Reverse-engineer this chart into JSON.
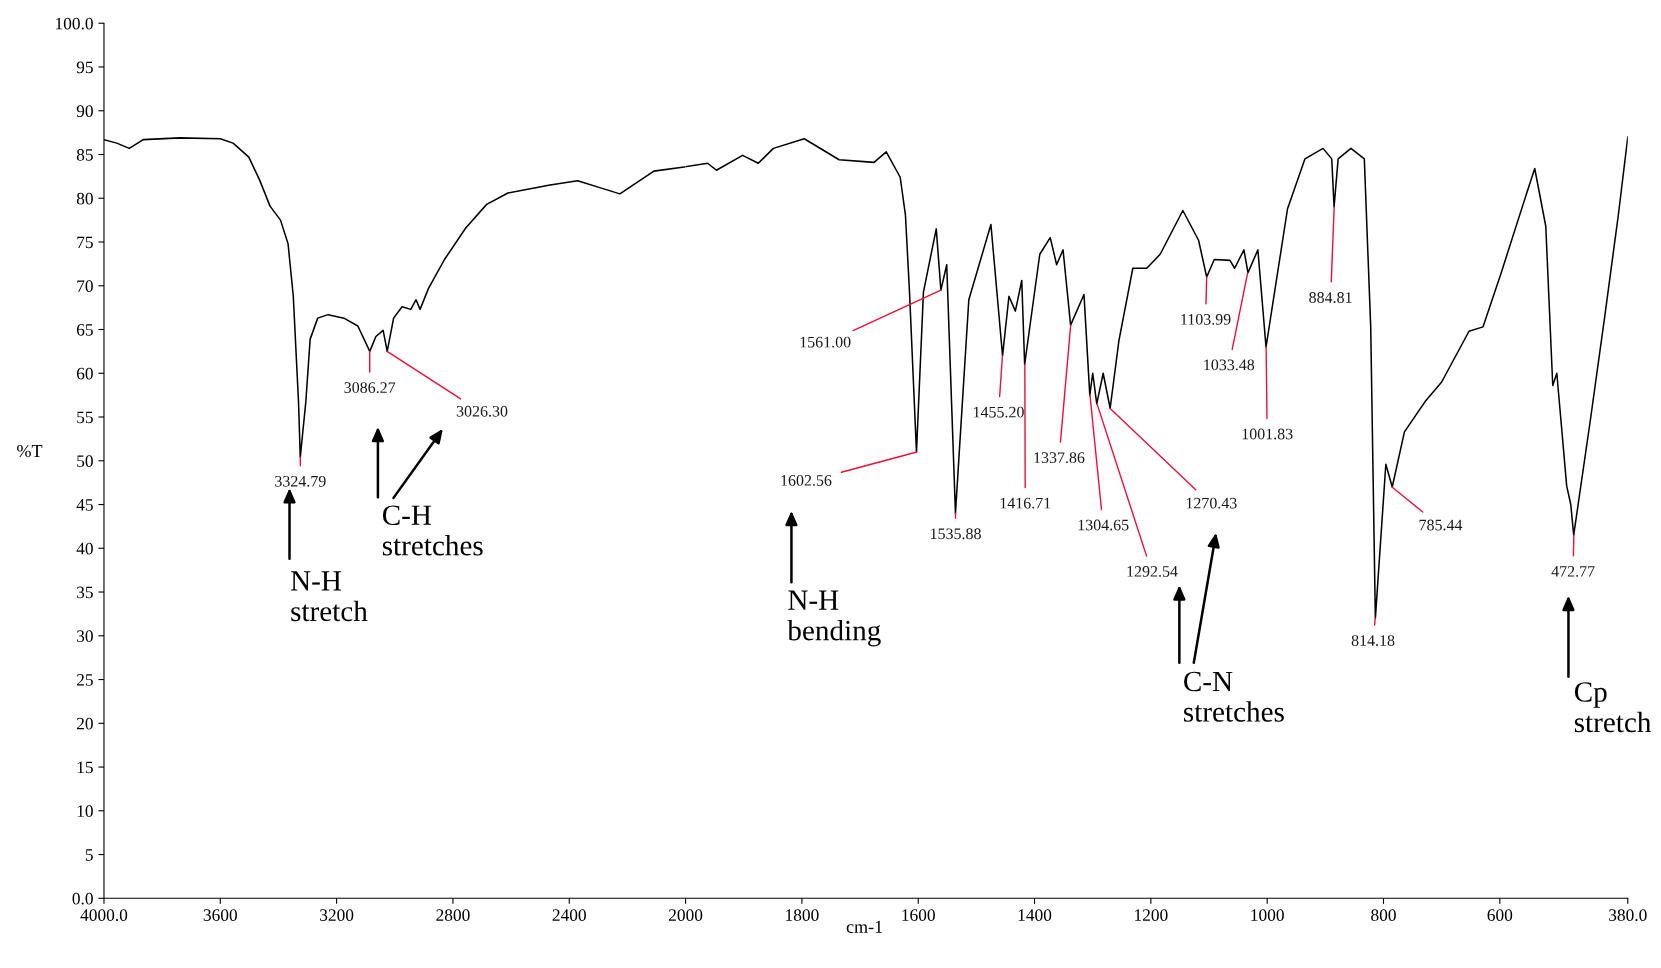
{
  "chart_data": [
    {
      "type": "line",
      "ylabel": "%T",
      "xlim": [
        4000,
        2000
      ],
      "ylim": [
        0,
        100
      ],
      "xticks": [
        {
          "value": 4000,
          "label": "4000.0"
        },
        3600,
        3200,
        2800,
        2400,
        2000
      ],
      "yticks": [
        {
          "value": 0,
          "label": "0.0"
        },
        5,
        10,
        15,
        20,
        25,
        30,
        35,
        40,
        45,
        50,
        55,
        60,
        65,
        70,
        75,
        80,
        85,
        90,
        95,
        {
          "value": 100,
          "label": "100.0"
        }
      ],
      "series": [
        {
          "color": "#000000",
          "x": [
            4000,
            3956,
            3913,
            3865,
            3738,
            3600,
            3556,
            3502,
            3465,
            3429,
            3393,
            3367,
            3349,
            3331,
            3325,
            3306,
            3291,
            3265,
            3229,
            3175,
            3127,
            3086,
            3065,
            3040,
            3026,
            3004,
            2975,
            2945,
            2927,
            2913,
            2884,
            2829,
            2756,
            2684,
            2611,
            2466,
            2371,
            2284,
            2226,
            2109,
            2000
          ],
          "values": [
            86.7,
            86.3,
            85.7,
            86.7,
            86.9,
            86.8,
            86.3,
            84.7,
            82.1,
            79.1,
            77.5,
            74.8,
            68.8,
            56.7,
            50.4,
            56.7,
            63.9,
            66.3,
            66.7,
            66.3,
            65.4,
            62.5,
            64.2,
            64.9,
            62.5,
            66.3,
            67.6,
            67.3,
            68.4,
            67.3,
            69.7,
            73.0,
            76.6,
            79.3,
            80.6,
            81.5,
            82.0,
            81.1,
            80.5,
            83.1,
            83.6
          ]
        }
      ],
      "annotations": [
        {
          "text": "3324.79",
          "x": 3324.79,
          "y": 50.4
        },
        {
          "text": "3086.27",
          "x": 3086.27,
          "y": 62.5
        },
        {
          "text": "3026.30",
          "x": 3026.3,
          "y": 62.5
        },
        "N-H\nstretch",
        "C-H\nstretches"
      ]
    },
    {
      "type": "line",
      "xlabel": "cm-1",
      "xlim": [
        2000,
        380
      ],
      "ylim": [
        0,
        100
      ],
      "xticks": [
        1800,
        1600,
        1400,
        1200,
        1000,
        800,
        600,
        {
          "value": 380,
          "label": "380.0"
        }
      ],
      "tick_labels": "x",
      "series": [
        {
          "color": "#000000",
          "x": [
            2000,
            1962,
            1947,
            1902,
            1875,
            1849,
            1796,
            1736,
            1676,
            1655,
            1631,
            1622,
            1615,
            1603,
            1591,
            1569,
            1561,
            1551,
            1536,
            1513,
            1475,
            1455,
            1444,
            1433,
            1422,
            1417,
            1391,
            1373,
            1362,
            1351,
            1338,
            1315,
            1305,
            1300,
            1293,
            1282,
            1270,
            1255,
            1231,
            1207,
            1184,
            1145,
            1118,
            1104,
            1091,
            1064,
            1056,
            1040,
            1033,
            1016,
            1002,
            965,
            935,
            904,
            889,
            885,
            878,
            856,
            833,
            822,
            814,
            796,
            785,
            764,
            727,
            700,
            653,
            629,
            598,
            560,
            540,
            521,
            509,
            502,
            485,
            478,
            473,
            444,
            420,
            396,
            380
          ],
          "values": [
            83.6,
            84.0,
            83.2,
            84.9,
            84.0,
            85.7,
            86.8,
            84.4,
            84.1,
            85.3,
            82.4,
            78.1,
            69.3,
            51.0,
            69.3,
            76.5,
            69.5,
            72.4,
            44.0,
            68.4,
            77.0,
            62.0,
            68.8,
            67.1,
            70.6,
            61.0,
            73.6,
            75.5,
            72.4,
            74.1,
            65.5,
            69.0,
            57.5,
            60.0,
            56.5,
            60.0,
            56.0,
            63.7,
            72.0,
            72.0,
            73.6,
            78.6,
            75.2,
            71.0,
            73.0,
            72.9,
            72.0,
            74.1,
            71.5,
            74.1,
            63.0,
            78.8,
            84.5,
            85.7,
            84.5,
            79.0,
            84.5,
            85.7,
            84.5,
            65.3,
            32.0,
            49.6,
            47.0,
            53.3,
            56.9,
            59.0,
            64.8,
            65.3,
            71.4,
            79.3,
            83.4,
            76.8,
            58.6,
            60.0,
            47.1,
            45.0,
            41.5,
            54.8,
            66.3,
            78.2,
            87.0
          ]
        }
      ],
      "annotations": [
        {
          "text": "1602.56",
          "x": 1602.56,
          "y": 51.0
        },
        {
          "text": "1561.00",
          "x": 1561.0,
          "y": 69.5
        },
        {
          "text": "1535.88",
          "x": 1535.88,
          "y": 44.0
        },
        {
          "text": "1455.20",
          "x": 1455.2,
          "y": 62.0
        },
        {
          "text": "1416.71",
          "x": 1416.71,
          "y": 61.0
        },
        {
          "text": "1337.86",
          "x": 1337.86,
          "y": 65.5
        },
        {
          "text": "1304.65",
          "x": 1304.65,
          "y": 57.5
        },
        {
          "text": "1292.54",
          "x": 1292.54,
          "y": 56.5
        },
        {
          "text": "1270.43",
          "x": 1270.43,
          "y": 56.0
        },
        {
          "text": "1103.99",
          "x": 1103.99,
          "y": 71.0
        },
        {
          "text": "1033.48",
          "x": 1033.48,
          "y": 71.5
        },
        {
          "text": "1001.83",
          "x": 1001.83,
          "y": 63.0
        },
        {
          "text": "884.81",
          "x": 884.81,
          "y": 79.0
        },
        {
          "text": "814.18",
          "x": 814.18,
          "y": 32.0
        },
        {
          "text": "785.44",
          "x": 785.44,
          "y": 47.0
        },
        {
          "text": "472.77",
          "x": 472.77,
          "y": 41.5
        },
        "N-H\nbending",
        "C-N\nstretches",
        "Cp\nstretch"
      ]
    }
  ]
}
